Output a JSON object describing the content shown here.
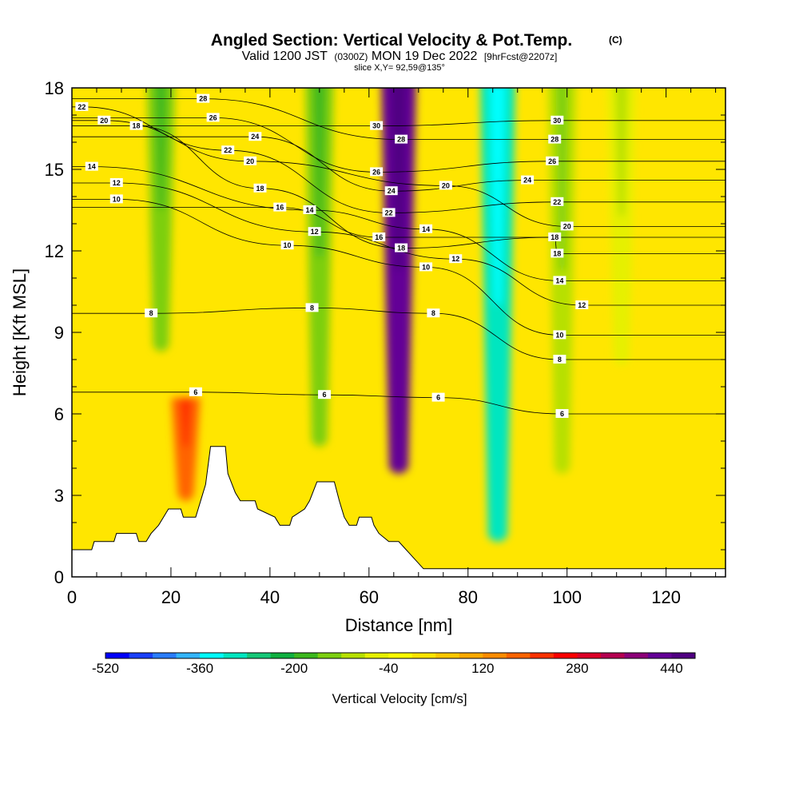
{
  "header": {
    "title": "Angled Section: Vertical Velocity & Pot.Temp.",
    "title_tag": "(C)",
    "valid_prefix": "Valid 1200 JST",
    "valid_utc": "(0300Z)",
    "valid_date": "MON 19 Dec 2022",
    "forecast": "[9hrFcst@2207z]",
    "slice": "slice X,Y= 92,59@135°"
  },
  "chart_data": {
    "type": "heatmap",
    "xlabel": "Distance [nm]",
    "ylabel": "Height [Kft MSL]",
    "xlim": [
      0,
      132
    ],
    "ylim": [
      0,
      18
    ],
    "x_ticks": [
      0,
      20,
      40,
      60,
      80,
      100,
      120
    ],
    "y_ticks": [
      0,
      3,
      6,
      9,
      12,
      15,
      18
    ],
    "colorbar": {
      "title": "Vertical Velocity [cm/s]",
      "min": -520,
      "max": 480,
      "step": 40,
      "tick_labels": [
        -520,
        -360,
        -200,
        -40,
        120,
        280,
        440
      ],
      "colors": [
        "#0000ff",
        "#1a40ff",
        "#2a7dff",
        "#33b5ff",
        "#00ffff",
        "#00e6c0",
        "#16c878",
        "#0fb040",
        "#3cb81e",
        "#7dcf10",
        "#b7e000",
        "#e6f000",
        "#ffff00",
        "#ffe400",
        "#ffc800",
        "#ffaa00",
        "#ff8c00",
        "#ff6400",
        "#ff3200",
        "#ff0000",
        "#dc0028",
        "#b40050",
        "#8c0078",
        "#640096",
        "#500082"
      ]
    },
    "velocity_features": [
      {
        "x": 18,
        "velocity": -160,
        "top_kft": 18,
        "bottom_kft": 8.5
      },
      {
        "x": 23,
        "velocity": 160,
        "top_kft": 6,
        "bottom_kft": 3
      },
      {
        "x": 50,
        "velocity": -160,
        "top_kft": 18,
        "bottom_kft": 5
      },
      {
        "x": 66,
        "velocity": 400,
        "top_kft": 18,
        "bottom_kft": 4
      },
      {
        "x": 86,
        "velocity": -320,
        "top_kft": 18,
        "bottom_kft": 1.5
      },
      {
        "x": 99,
        "velocity": -120,
        "top_kft": 18,
        "bottom_kft": 4
      },
      {
        "x": 111,
        "velocity": -80,
        "top_kft": 18,
        "bottom_kft": 8
      }
    ],
    "terrain": [
      {
        "x": 0,
        "h": 1.0
      },
      {
        "x": 4,
        "h": 1.0
      },
      {
        "x": 4.5,
        "h": 1.3
      },
      {
        "x": 8.5,
        "h": 1.3
      },
      {
        "x": 9,
        "h": 1.6
      },
      {
        "x": 13,
        "h": 1.6
      },
      {
        "x": 13.5,
        "h": 1.3
      },
      {
        "x": 15,
        "h": 1.3
      },
      {
        "x": 16,
        "h": 1.6
      },
      {
        "x": 17.5,
        "h": 1.9
      },
      {
        "x": 18.5,
        "h": 2.2
      },
      {
        "x": 19.5,
        "h": 2.5
      },
      {
        "x": 22,
        "h": 2.5
      },
      {
        "x": 22.5,
        "h": 2.2
      },
      {
        "x": 25,
        "h": 2.2
      },
      {
        "x": 25.5,
        "h": 2.5
      },
      {
        "x": 27,
        "h": 3.4
      },
      {
        "x": 28,
        "h": 4.8
      },
      {
        "x": 31,
        "h": 4.8
      },
      {
        "x": 31.5,
        "h": 3.8
      },
      {
        "x": 33,
        "h": 3.1
      },
      {
        "x": 34,
        "h": 2.8
      },
      {
        "x": 37,
        "h": 2.8
      },
      {
        "x": 37.5,
        "h": 2.5
      },
      {
        "x": 41,
        "h": 2.2
      },
      {
        "x": 42,
        "h": 1.9
      },
      {
        "x": 44,
        "h": 1.9
      },
      {
        "x": 44.5,
        "h": 2.2
      },
      {
        "x": 47,
        "h": 2.5
      },
      {
        "x": 48,
        "h": 2.8
      },
      {
        "x": 49.5,
        "h": 3.5
      },
      {
        "x": 53,
        "h": 3.5
      },
      {
        "x": 54,
        "h": 2.8
      },
      {
        "x": 55,
        "h": 2.2
      },
      {
        "x": 56,
        "h": 1.9
      },
      {
        "x": 57.5,
        "h": 1.9
      },
      {
        "x": 58,
        "h": 2.2
      },
      {
        "x": 60.5,
        "h": 2.2
      },
      {
        "x": 61,
        "h": 1.9
      },
      {
        "x": 62,
        "h": 1.6
      },
      {
        "x": 64,
        "h": 1.3
      },
      {
        "x": 66,
        "h": 1.3
      },
      {
        "x": 67.5,
        "h": 1.0
      },
      {
        "x": 69,
        "h": 0.7
      },
      {
        "x": 71,
        "h": 0.3
      },
      {
        "x": 132,
        "h": 0.3
      }
    ],
    "theta_contours": [
      {
        "label": "6",
        "label_positions": [
          [
            25,
            6.8
          ],
          [
            51,
            6.7
          ],
          [
            74,
            6.6
          ],
          [
            99,
            6.0
          ]
        ]
      },
      {
        "label": "8",
        "label_positions": [
          [
            16,
            9.7
          ],
          [
            48.5,
            9.9
          ],
          [
            73,
            9.7
          ],
          [
            98.5,
            8.0
          ]
        ]
      },
      {
        "label": "10",
        "label_positions": [
          [
            9,
            13.9
          ],
          [
            43.5,
            12.2
          ],
          [
            71.5,
            11.4
          ],
          [
            98.5,
            8.9
          ]
        ]
      },
      {
        "label": "12",
        "label_positions": [
          [
            9,
            14.5
          ],
          [
            49,
            12.7
          ],
          [
            77.5,
            11.7
          ],
          [
            103,
            10.0
          ]
        ]
      },
      {
        "label": "14",
        "label_positions": [
          [
            4,
            15.1
          ],
          [
            48,
            13.5
          ],
          [
            71.5,
            12.8
          ],
          [
            98.5,
            10.9
          ]
        ]
      },
      {
        "label": "16",
        "label_positions": [
          [
            42,
            13.6
          ],
          [
            62,
            12.5
          ]
        ]
      },
      {
        "label": "18",
        "label_positions": [
          [
            13,
            16.6
          ],
          [
            38,
            14.3
          ],
          [
            66.5,
            12.1
          ],
          [
            97.5,
            12.5
          ],
          [
            98,
            11.9
          ]
        ]
      },
      {
        "label": "20",
        "label_positions": [
          [
            6.5,
            16.8
          ],
          [
            36,
            15.3
          ],
          [
            75.5,
            14.4
          ],
          [
            100,
            12.9
          ]
        ]
      },
      {
        "label": "22",
        "label_positions": [
          [
            2,
            17.3
          ],
          [
            31.5,
            15.7
          ],
          [
            64,
            13.4
          ],
          [
            98,
            13.8
          ]
        ]
      },
      {
        "label": "24",
        "label_positions": [
          [
            37,
            16.2
          ],
          [
            64.5,
            14.2
          ],
          [
            92,
            14.6
          ]
        ]
      },
      {
        "label": "26",
        "label_positions": [
          [
            28.5,
            16.9
          ],
          [
            61.5,
            14.9
          ],
          [
            97,
            15.3
          ]
        ]
      },
      {
        "label": "28",
        "label_positions": [
          [
            26.5,
            17.6
          ],
          [
            66.5,
            16.1
          ],
          [
            97.5,
            16.1
          ]
        ]
      },
      {
        "label": "30",
        "label_positions": [
          [
            61.5,
            16.6
          ],
          [
            98,
            16.8
          ]
        ]
      }
    ]
  }
}
